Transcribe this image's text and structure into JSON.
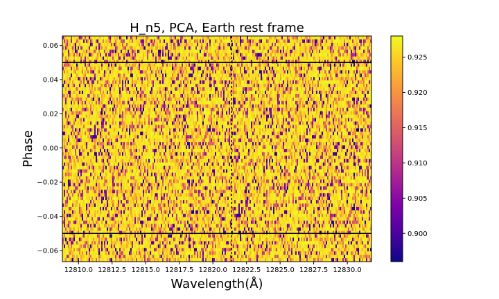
{
  "chart_data": {
    "type": "heatmap",
    "title": "H_n5, PCA, Earth rest frame",
    "xlabel": "Wavelength(Å)",
    "ylabel": "Phase",
    "xlim": [
      12808.8,
      12831.8
    ],
    "ylim": [
      -0.0665,
      0.0655
    ],
    "x_ticks": [
      12810.0,
      12812.5,
      12815.0,
      12817.5,
      12820.0,
      12822.5,
      12825.0,
      12827.5,
      12830.0
    ],
    "x_tick_labels": [
      "12810.0",
      "12812.5",
      "12815.0",
      "12817.5",
      "12820.0",
      "12822.5",
      "12825.0",
      "12827.5",
      "12830.0"
    ],
    "y_ticks": [
      -0.06,
      -0.04,
      -0.02,
      0.0,
      0.02,
      0.04,
      0.06
    ],
    "y_tick_labels": [
      "−0.06",
      "−0.04",
      "−0.02",
      "0.00",
      "0.02",
      "0.04",
      "0.06"
    ],
    "hlines": [
      -0.05,
      0.05
    ],
    "vline": 12821.4,
    "colormap": "plasma",
    "colorbar": {
      "vmin": 0.896,
      "vmax": 0.928,
      "ticks": [
        0.9,
        0.905,
        0.91,
        0.915,
        0.92,
        0.925
      ],
      "tick_labels": [
        "0.900",
        "0.905",
        "0.910",
        "0.915",
        "0.920",
        "0.925"
      ]
    },
    "grid": false
  }
}
